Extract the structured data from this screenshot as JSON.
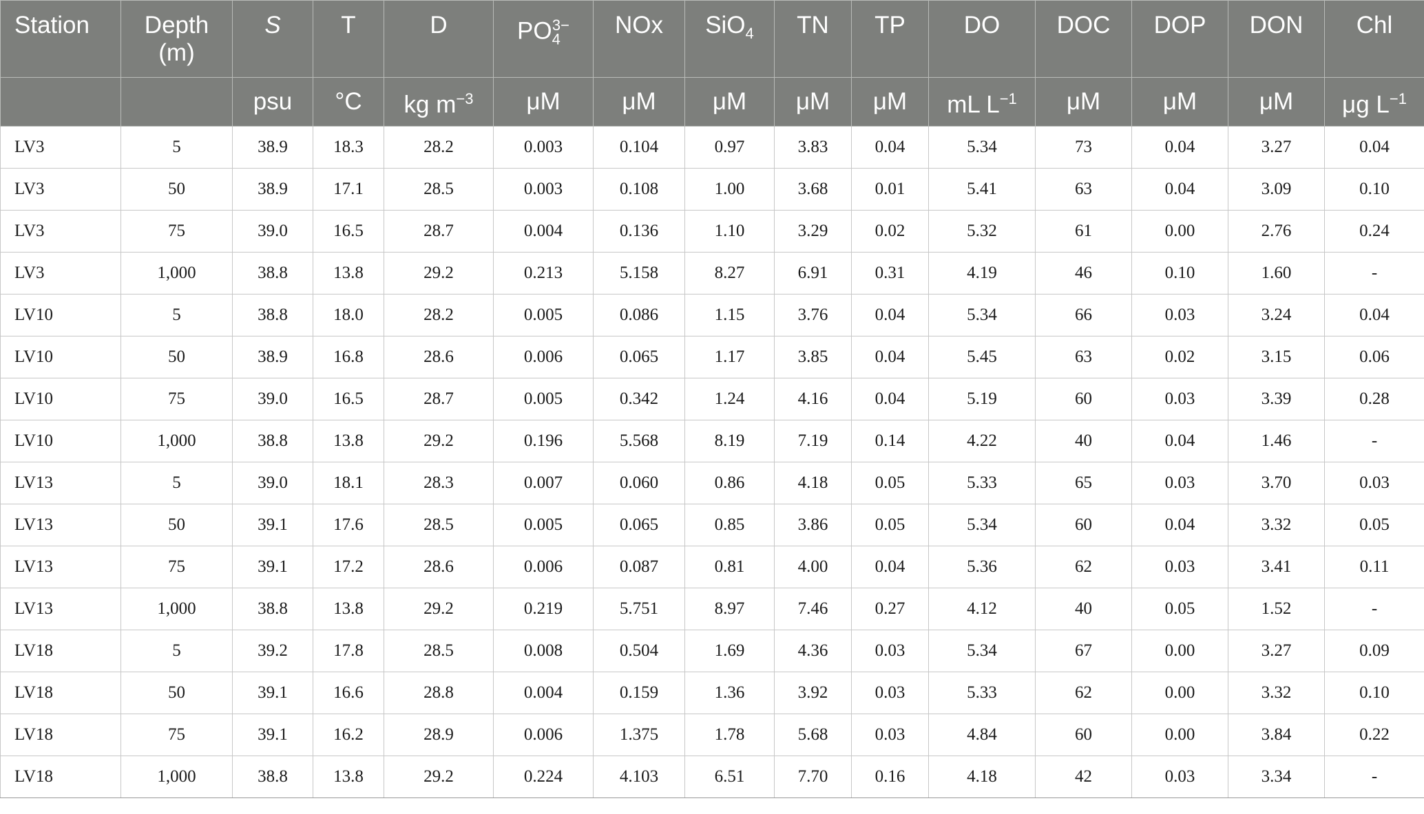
{
  "headers": [
    {
      "label": "Station",
      "sub": "",
      "sup": "",
      "unit": ""
    },
    {
      "label": "Depth",
      "line2": "(m)",
      "unit": ""
    },
    {
      "label": "S",
      "italic": true,
      "unit": "psu"
    },
    {
      "label": "T",
      "unit": "°C"
    },
    {
      "label": "D",
      "unit": "kg m",
      "unit_sup": "−3"
    },
    {
      "label": "PO",
      "sub": "4",
      "sup": "3−",
      "unit": "μM"
    },
    {
      "label": "NOx",
      "unit": "μM"
    },
    {
      "label": "SiO",
      "sub": "4",
      "unit": "μM"
    },
    {
      "label": "TN",
      "unit": "μM"
    },
    {
      "label": "TP",
      "unit": "μM"
    },
    {
      "label": "DO",
      "unit": "mL L",
      "unit_sup": "−1"
    },
    {
      "label": "DOC",
      "unit": "μM"
    },
    {
      "label": "DOP",
      "unit": "μM"
    },
    {
      "label": "DON",
      "unit": "μM"
    },
    {
      "label": "Chl",
      "unit": "μg L",
      "unit_sup": "−1"
    }
  ],
  "rows": [
    [
      "LV3",
      "5",
      "38.9",
      "18.3",
      "28.2",
      "0.003",
      "0.104",
      "0.97",
      "3.83",
      "0.04",
      "5.34",
      "73",
      "0.04",
      "3.27",
      "0.04"
    ],
    [
      "LV3",
      "50",
      "38.9",
      "17.1",
      "28.5",
      "0.003",
      "0.108",
      "1.00",
      "3.68",
      "0.01",
      "5.41",
      "63",
      "0.04",
      "3.09",
      "0.10"
    ],
    [
      "LV3",
      "75",
      "39.0",
      "16.5",
      "28.7",
      "0.004",
      "0.136",
      "1.10",
      "3.29",
      "0.02",
      "5.32",
      "61",
      "0.00",
      "2.76",
      "0.24"
    ],
    [
      "LV3",
      "1,000",
      "38.8",
      "13.8",
      "29.2",
      "0.213",
      "5.158",
      "8.27",
      "6.91",
      "0.31",
      "4.19",
      "46",
      "0.10",
      "1.60",
      "-"
    ],
    [
      "LV10",
      "5",
      "38.8",
      "18.0",
      "28.2",
      "0.005",
      "0.086",
      "1.15",
      "3.76",
      "0.04",
      "5.34",
      "66",
      "0.03",
      "3.24",
      "0.04"
    ],
    [
      "LV10",
      "50",
      "38.9",
      "16.8",
      "28.6",
      "0.006",
      "0.065",
      "1.17",
      "3.85",
      "0.04",
      "5.45",
      "63",
      "0.02",
      "3.15",
      "0.06"
    ],
    [
      "LV10",
      "75",
      "39.0",
      "16.5",
      "28.7",
      "0.005",
      "0.342",
      "1.24",
      "4.16",
      "0.04",
      "5.19",
      "60",
      "0.03",
      "3.39",
      "0.28"
    ],
    [
      "LV10",
      "1,000",
      "38.8",
      "13.8",
      "29.2",
      "0.196",
      "5.568",
      "8.19",
      "7.19",
      "0.14",
      "4.22",
      "40",
      "0.04",
      "1.46",
      "-"
    ],
    [
      "LV13",
      "5",
      "39.0",
      "18.1",
      "28.3",
      "0.007",
      "0.060",
      "0.86",
      "4.18",
      "0.05",
      "5.33",
      "65",
      "0.03",
      "3.70",
      "0.03"
    ],
    [
      "LV13",
      "50",
      "39.1",
      "17.6",
      "28.5",
      "0.005",
      "0.065",
      "0.85",
      "3.86",
      "0.05",
      "5.34",
      "60",
      "0.04",
      "3.32",
      "0.05"
    ],
    [
      "LV13",
      "75",
      "39.1",
      "17.2",
      "28.6",
      "0.006",
      "0.087",
      "0.81",
      "4.00",
      "0.04",
      "5.36",
      "62",
      "0.03",
      "3.41",
      "0.11"
    ],
    [
      "LV13",
      "1,000",
      "38.8",
      "13.8",
      "29.2",
      "0.219",
      "5.751",
      "8.97",
      "7.46",
      "0.27",
      "4.12",
      "40",
      "0.05",
      "1.52",
      "-"
    ],
    [
      "LV18",
      "5",
      "39.2",
      "17.8",
      "28.5",
      "0.008",
      "0.504",
      "1.69",
      "4.36",
      "0.03",
      "5.34",
      "67",
      "0.00",
      "3.27",
      "0.09"
    ],
    [
      "LV18",
      "50",
      "39.1",
      "16.6",
      "28.8",
      "0.004",
      "0.159",
      "1.36",
      "3.92",
      "0.03",
      "5.33",
      "62",
      "0.00",
      "3.32",
      "0.10"
    ],
    [
      "LV18",
      "75",
      "39.1",
      "16.2",
      "28.9",
      "0.006",
      "1.375",
      "1.78",
      "5.68",
      "0.03",
      "4.84",
      "60",
      "0.00",
      "3.84",
      "0.22"
    ],
    [
      "LV18",
      "1,000",
      "38.8",
      "13.8",
      "29.2",
      "0.224",
      "4.103",
      "6.51",
      "7.70",
      "0.16",
      "4.18",
      "42",
      "0.03",
      "3.34",
      "-"
    ]
  ],
  "colors": {
    "header_bg": "#7d7f7c",
    "header_text": "#ffffff",
    "body_text": "#1a1a1a",
    "grid": "#c7c7c7"
  }
}
